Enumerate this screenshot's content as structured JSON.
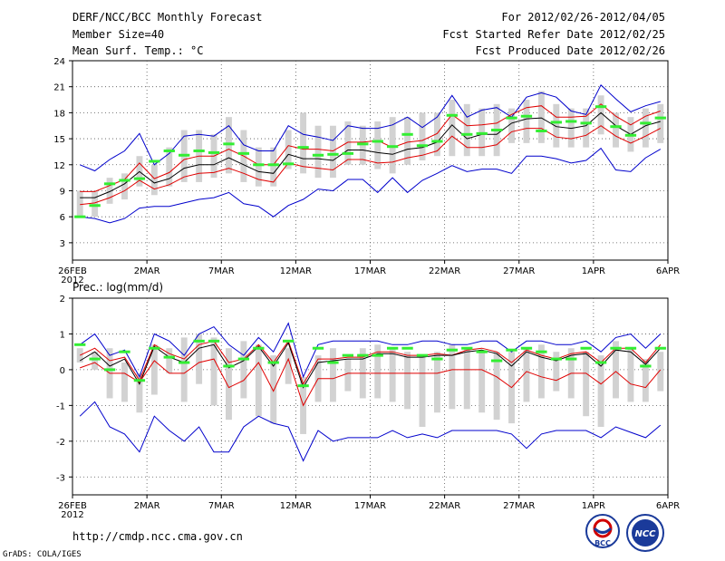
{
  "header": {
    "title": "DERF/NCC/BCC Monthly Forecast",
    "member_size": "Member Size=40",
    "variable": "Mean Surf. Temp.: °C",
    "period": "For 2012/02/26-2012/04/05",
    "started": "Fcst Started Refer Date 2012/02/25",
    "produced": "Fcst Produced Date 2012/02/26"
  },
  "footer": {
    "url": "http://cmdp.ncc.cma.gov.cn",
    "credit": "GrADS: COLA/IGES",
    "logo_bcc": "BCC",
    "logo_ncc": "NCC"
  },
  "colors": {
    "box": "#d2d2d2",
    "green": "#33ee33",
    "red": "#e00000",
    "blue": "#0000cc",
    "black": "#000000",
    "grid": "#555555"
  },
  "x_ticks": [
    {
      "day": 0,
      "label": "26FEB",
      "sub": "2012"
    },
    {
      "day": 5,
      "label": "2MAR"
    },
    {
      "day": 10,
      "label": "7MAR"
    },
    {
      "day": 15,
      "label": "12MAR"
    },
    {
      "day": 20,
      "label": "17MAR"
    },
    {
      "day": 25,
      "label": "22MAR"
    },
    {
      "day": 30,
      "label": "27MAR"
    },
    {
      "day": 35,
      "label": "1APR"
    },
    {
      "day": 40,
      "label": "6APR"
    }
  ],
  "chart_data": [
    {
      "type": "line",
      "title": "Mean Surf. Temp.: °C",
      "xlabel": "",
      "ylabel": "",
      "ylim": [
        1,
        24
      ],
      "yticks": [
        3,
        6,
        9,
        12,
        15,
        18,
        21,
        24
      ],
      "days": [
        0,
        1,
        2,
        3,
        4,
        5,
        6,
        7,
        8,
        9,
        10,
        11,
        12,
        13,
        14,
        15,
        16,
        17,
        18,
        19,
        20,
        21,
        22,
        23,
        24,
        25,
        26,
        27,
        28,
        29,
        30,
        31,
        32,
        33,
        34,
        35,
        36,
        37,
        38,
        39
      ],
      "series": [
        {
          "name": "ensemble max",
          "color": "blue",
          "values": [
            12,
            11.3,
            12.6,
            13.6,
            15.6,
            12,
            13.3,
            15.3,
            15.5,
            15.3,
            16.5,
            14.3,
            13.6,
            13.6,
            16.5,
            15.5,
            15.2,
            14.8,
            16.5,
            16.2,
            16.2,
            16.6,
            17.5,
            16.3,
            17.5,
            20,
            17.5,
            18.3,
            18.6,
            17.5,
            19.8,
            20.3,
            19.8,
            18.2,
            17.8,
            21.2,
            19.6,
            18.1,
            18.8,
            19.3
          ]
        },
        {
          "name": "upper bound",
          "color": "red",
          "values": [
            8.9,
            8.9,
            9.6,
            10.3,
            12.2,
            10.4,
            11.1,
            12.6,
            13,
            13,
            13.8,
            13,
            12,
            12,
            14.2,
            13.8,
            13.8,
            13.6,
            14.6,
            14.6,
            14.8,
            14,
            14.6,
            14.8,
            15.6,
            17.8,
            16.5,
            16.6,
            16.8,
            17.8,
            18.6,
            18.8,
            17.5,
            17.5,
            17.6,
            19,
            17.6,
            16.6,
            17.6,
            18.2
          ]
        },
        {
          "name": "ensemble mean",
          "color": "black",
          "values": [
            8.2,
            8.2,
            8.9,
            9.8,
            11.2,
            9.9,
            10.4,
            11.6,
            12,
            12,
            12.8,
            12,
            11.2,
            11,
            13.2,
            12.7,
            12.7,
            12.5,
            13.7,
            13.7,
            13.4,
            13.2,
            13.8,
            14,
            14.6,
            16.6,
            15,
            15.5,
            15.5,
            16.8,
            17.3,
            17.4,
            16.4,
            16.2,
            16.5,
            18,
            16.5,
            15.5,
            16.5,
            17
          ]
        },
        {
          "name": "lower bound",
          "color": "red",
          "values": [
            7.4,
            7.6,
            8.2,
            9,
            10.2,
            9.2,
            9.7,
            10.6,
            11,
            11.1,
            11.6,
            11,
            10.3,
            10,
            12.2,
            11.8,
            11.6,
            11.4,
            12.6,
            12.6,
            12.2,
            12.3,
            12.8,
            13.1,
            13.6,
            15.3,
            14,
            14,
            14.3,
            15.8,
            16.2,
            16.2,
            15.2,
            15,
            15.4,
            16.5,
            15.3,
            14.5,
            15.3,
            16.2
          ]
        },
        {
          "name": "ensemble min",
          "color": "blue",
          "values": [
            6,
            5.8,
            5.3,
            5.8,
            7,
            7.2,
            7.2,
            7.6,
            8,
            8.2,
            8.8,
            7.5,
            7.2,
            6,
            7.3,
            8,
            9.2,
            9,
            10.3,
            10.3,
            8.8,
            10.5,
            8.8,
            10.2,
            11,
            11.9,
            11.2,
            11.5,
            11.5,
            11,
            13,
            13,
            12.7,
            12.2,
            12.5,
            13.9,
            11.4,
            11.2,
            12.8,
            13.8
          ]
        }
      ],
      "boxes": {
        "color": "box",
        "lows": [
          6,
          6,
          7.5,
          8,
          9.5,
          8.5,
          9.5,
          10,
          10,
          10.5,
          11,
          10,
          9.5,
          9.5,
          11.5,
          11,
          10.5,
          10.5,
          12,
          12,
          11.5,
          11,
          12,
          12.5,
          13,
          13,
          13,
          13,
          13,
          14.5,
          14.5,
          14.5,
          14,
          14,
          14,
          15.5,
          14,
          13.5,
          14,
          14.5
        ],
        "highs": [
          9,
          9,
          10.5,
          11,
          13,
          12,
          14,
          16,
          16,
          15.5,
          17.5,
          16,
          14,
          14,
          16,
          18,
          16.5,
          16.5,
          17,
          16.5,
          17,
          17.5,
          17.5,
          18,
          18,
          19.5,
          19,
          18.5,
          19,
          18.5,
          19.5,
          20.5,
          19,
          18.5,
          18.5,
          20,
          18,
          17.5,
          18.5,
          19
        ]
      },
      "observed": {
        "color": "green",
        "values": [
          6,
          7.3,
          9.8,
          10.2,
          10.4,
          12.4,
          13.6,
          13.1,
          13.6,
          13.4,
          14.4,
          13.3,
          12,
          12,
          12.1,
          14,
          13.1,
          13.2,
          13.3,
          14.4,
          14.7,
          14.1,
          15.5,
          14.2,
          14.7,
          17.7,
          15.5,
          15.6,
          16,
          17.4,
          17.6,
          15.9,
          16.9,
          17,
          16.8,
          18.7,
          16.4,
          15.4,
          16.8,
          17.4
        ]
      }
    },
    {
      "type": "line",
      "title": "Prec.: log(mm/d)",
      "xlabel": "",
      "ylabel": "",
      "ylim": [
        -3.5,
        2
      ],
      "yticks": [
        -3,
        -2,
        -1,
        0,
        1,
        2
      ],
      "days": [
        0,
        1,
        2,
        3,
        4,
        5,
        6,
        7,
        8,
        9,
        10,
        11,
        12,
        13,
        14,
        15,
        16,
        17,
        18,
        19,
        20,
        21,
        22,
        23,
        24,
        25,
        26,
        27,
        28,
        29,
        30,
        31,
        32,
        33,
        34,
        35,
        36,
        37,
        38,
        39
      ],
      "series": [
        {
          "name": "ensemble max",
          "color": "blue",
          "values": [
            0.7,
            1,
            0.4,
            0.55,
            -0.2,
            1,
            0.8,
            0.4,
            1,
            1.2,
            0.7,
            0.4,
            0.9,
            0.5,
            1.3,
            -0.2,
            0.7,
            0.8,
            0.8,
            0.8,
            0.8,
            0.7,
            0.7,
            0.8,
            0.8,
            0.7,
            0.7,
            0.8,
            0.8,
            0.5,
            0.8,
            0.8,
            0.7,
            0.7,
            0.8,
            0.5,
            0.9,
            1,
            0.6,
            1
          ]
        },
        {
          "name": "upper bound",
          "color": "red",
          "values": [
            0.4,
            0.6,
            0.25,
            0.35,
            -0.3,
            0.7,
            0.45,
            0.3,
            0.7,
            0.8,
            0.2,
            0.3,
            0.7,
            0.2,
            0.8,
            -0.4,
            0.3,
            0.3,
            0.35,
            0.35,
            0.5,
            0.5,
            0.4,
            0.4,
            0.45,
            0.4,
            0.55,
            0.6,
            0.5,
            0.2,
            0.55,
            0.4,
            0.3,
            0.45,
            0.5,
            0.2,
            0.6,
            0.6,
            0.2,
            0.7
          ]
        },
        {
          "name": "ensemble mean",
          "color": "black",
          "values": [
            0.25,
            0.5,
            0.1,
            0.3,
            -0.4,
            0.65,
            0.35,
            0.2,
            0.6,
            0.7,
            0.05,
            0.25,
            0.65,
            0.1,
            0.75,
            -0.5,
            0.2,
            0.25,
            0.3,
            0.3,
            0.45,
            0.45,
            0.35,
            0.35,
            0.4,
            0.4,
            0.5,
            0.55,
            0.45,
            0.1,
            0.5,
            0.35,
            0.25,
            0.4,
            0.45,
            0.1,
            0.55,
            0.5,
            0.15,
            0.6
          ]
        },
        {
          "name": "lower bound",
          "color": "red",
          "values": [
            0.05,
            0.2,
            -0.1,
            -0.1,
            -0.35,
            0.25,
            -0.1,
            -0.1,
            0.2,
            0.3,
            -0.5,
            -0.3,
            0.2,
            -0.6,
            0.3,
            -1,
            -0.25,
            -0.25,
            -0.1,
            -0.1,
            -0.1,
            -0.1,
            -0.1,
            -0.1,
            -0.1,
            0,
            0,
            0,
            -0.2,
            -0.5,
            -0.05,
            -0.2,
            -0.3,
            -0.1,
            -0.1,
            -0.4,
            -0.05,
            -0.4,
            -0.5,
            0
          ]
        },
        {
          "name": "ensemble min",
          "color": "blue",
          "values": [
            -1.3,
            -0.9,
            -1.6,
            -1.8,
            -2.3,
            -1.3,
            -1.7,
            -2,
            -1.6,
            -2.3,
            -2.3,
            -1.6,
            -1.3,
            -1.5,
            -1.6,
            -2.55,
            -1.7,
            -2,
            -1.9,
            -1.9,
            -1.9,
            -1.7,
            -1.9,
            -1.8,
            -1.9,
            -1.7,
            -1.7,
            -1.7,
            -1.7,
            -1.8,
            -2.2,
            -1.8,
            -1.7,
            -1.7,
            -1.7,
            -1.9,
            -1.6,
            -1.75,
            -1.9,
            -1.55
          ]
        }
      ],
      "boxes": {
        "color": "box",
        "lows": [
          0.2,
          0,
          -0.8,
          -0.9,
          -1.2,
          -0.7,
          -0.1,
          -0.9,
          -0.4,
          -1,
          -1.4,
          -0.8,
          -1.3,
          -1.5,
          -0.4,
          -1.8,
          -0.9,
          -0.9,
          -0.6,
          -0.8,
          -0.8,
          -0.9,
          -1.1,
          -1.6,
          -1.2,
          -1.1,
          -1.1,
          -1.2,
          -1.4,
          -1.5,
          -0.9,
          -0.8,
          -0.6,
          -0.8,
          -1.3,
          -1.6,
          -0.8,
          -0.9,
          -0.9,
          -0.6
        ],
        "highs": [
          0.6,
          0.5,
          0.6,
          0.2,
          -0.1,
          0.7,
          0.6,
          0.9,
          1,
          0.9,
          0.6,
          0.8,
          0.7,
          0.4,
          0.6,
          -0.2,
          0.4,
          0.6,
          0.3,
          0.6,
          0.7,
          0.6,
          0.5,
          0.4,
          0.5,
          0.7,
          0.6,
          0.5,
          0.5,
          0.5,
          0.6,
          0.7,
          0.5,
          0.6,
          0.5,
          0.4,
          0.8,
          0.6,
          0.3,
          0.5
        ]
      },
      "observed": {
        "color": "green",
        "values": [
          0.7,
          0.3,
          0,
          0.5,
          -0.3,
          0.6,
          0.35,
          0.2,
          0.8,
          0.8,
          0.1,
          0.3,
          0.6,
          0.2,
          0.8,
          -0.45,
          0.6,
          0.2,
          0.4,
          0.4,
          0.4,
          0.6,
          0.6,
          0.4,
          0.3,
          0.55,
          0.6,
          0.5,
          0.25,
          0.55,
          0.6,
          0.5,
          0.3,
          0.3,
          0.6,
          0.2,
          0.6,
          0.6,
          0.1,
          0.6
        ]
      }
    }
  ]
}
